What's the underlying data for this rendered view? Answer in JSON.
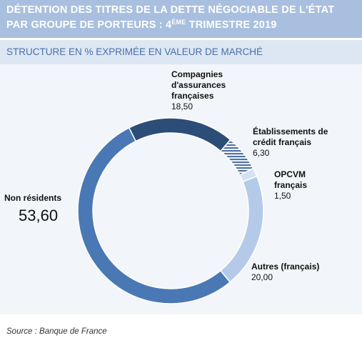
{
  "header": {
    "title_line1": "DÉTENTION DES TITRES DE LA DETTE NÉGOCIABLE DE L'ÉTAT",
    "title_line2_before": "PAR GROUPE DE PORTEURS : 4",
    "title_line2_sup": "ÈME",
    "title_line2_after": " TRIMESTRE 2019",
    "subtitle": "STRUCTURE EN % EXPRIMÉE EN VALEUR DE MARCHÉ"
  },
  "chart_data": {
    "type": "pie",
    "style": "donut",
    "categories": [
      "Compagnies d'assurances françaises",
      "Établissements de crédit français",
      "OPCVM français",
      "Autres (français)",
      "Non résidents"
    ],
    "values": [
      18.5,
      6.3,
      1.5,
      20.0,
      53.6
    ],
    "value_labels": [
      "18,50",
      "6,30",
      "1,50",
      "20,00",
      "53,60"
    ],
    "label_lines": [
      [
        "Compagnies",
        "d'assurances",
        "françaises"
      ],
      [
        "Établissements de",
        "crédit français"
      ],
      [
        "OPCVM",
        "français"
      ],
      [
        "Autres (français)"
      ],
      [
        "Non résidents"
      ]
    ],
    "colors": [
      "#2c4d78",
      "#5577a8",
      "#d5e2f2",
      "#b4cae8",
      "#4a78b4"
    ],
    "hatched": [
      false,
      true,
      false,
      false,
      false
    ]
  },
  "footer": {
    "source": "Source : Banque de France"
  }
}
